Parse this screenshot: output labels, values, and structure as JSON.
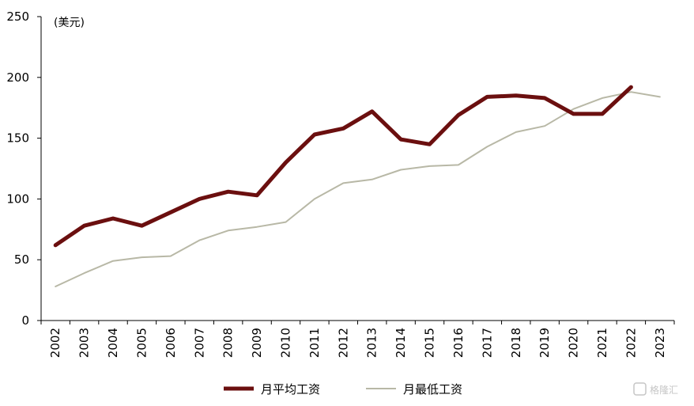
{
  "chart_data": {
    "type": "line",
    "unit_label": "(美元)",
    "x": [
      "2002",
      "2003",
      "2004",
      "2005",
      "2006",
      "2007",
      "2008",
      "2009",
      "2010",
      "2011",
      "2012",
      "2013",
      "2014",
      "2015",
      "2016",
      "2017",
      "2018",
      "2019",
      "2020",
      "2021",
      "2022",
      "2023"
    ],
    "ylim": [
      0,
      250
    ],
    "yticks": [
      0,
      50,
      100,
      150,
      200,
      250
    ],
    "grid": false,
    "legend_position": "bottom",
    "series": [
      {
        "name": "月平均工资",
        "color": "#6b0f0f",
        "values": [
          62,
          78,
          84,
          78,
          89,
          100,
          106,
          103,
          130,
          153,
          158,
          172,
          149,
          145,
          169,
          184,
          185,
          183,
          170,
          170,
          192,
          null
        ]
      },
      {
        "name": "月最低工资",
        "color": "#b8b8a6",
        "values": [
          28,
          39,
          49,
          52,
          53,
          66,
          74,
          77,
          81,
          100,
          113,
          116,
          124,
          127,
          128,
          143,
          155,
          160,
          174,
          183,
          188,
          184
        ]
      }
    ]
  },
  "watermark": "格隆汇"
}
